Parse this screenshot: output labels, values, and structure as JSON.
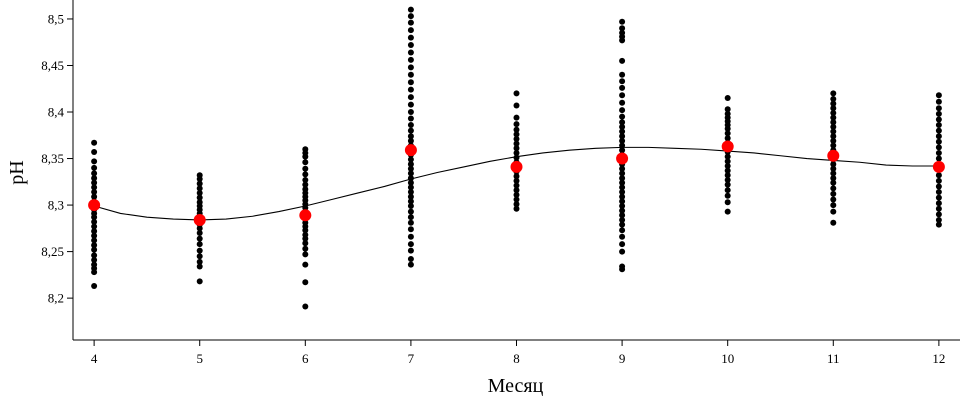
{
  "chart_data": {
    "type": "scatter",
    "title": "",
    "xlabel": "Месяц",
    "ylabel": "pH",
    "xlim": [
      3.8,
      12.2
    ],
    "ylim": [
      8.155,
      8.515
    ],
    "x_ticks": [
      4,
      5,
      6,
      7,
      8,
      9,
      10,
      11,
      12
    ],
    "x_tick_labels": [
      "4",
      "5",
      "6",
      "7",
      "8",
      "9",
      "10",
      "11",
      "12"
    ],
    "y_ticks": [
      8.2,
      8.25,
      8.3,
      8.35,
      8.4,
      8.45,
      8.5
    ],
    "y_tick_labels": [
      "8,2",
      "8,25",
      "8,3",
      "8,35",
      "8,4",
      "8,45",
      "8,5"
    ],
    "grid": false,
    "legend": "none",
    "colors": {
      "observations": "#000000",
      "monthly_mean": "#ff0000",
      "trend": "#000000"
    },
    "observations": [
      {
        "x": 4,
        "y": [
          8.213,
          8.228,
          8.232,
          8.236,
          8.241,
          8.246,
          8.252,
          8.257,
          8.262,
          8.267,
          8.272,
          8.277,
          8.282,
          8.287,
          8.291,
          8.295,
          8.298,
          8.304,
          8.309,
          8.314,
          8.319,
          8.324,
          8.329,
          8.334,
          8.34,
          8.347,
          8.357,
          8.367
        ]
      },
      {
        "x": 5,
        "y": [
          8.218,
          8.234,
          8.239,
          8.245,
          8.251,
          8.258,
          8.264,
          8.27,
          8.275,
          8.279,
          8.283,
          8.287,
          8.291,
          8.295,
          8.299,
          8.303,
          8.308,
          8.313,
          8.318,
          8.323,
          8.328,
          8.332
        ]
      },
      {
        "x": 6,
        "y": [
          8.191,
          8.217,
          8.236,
          8.247,
          8.253,
          8.259,
          8.264,
          8.268,
          8.273,
          8.277,
          8.281,
          8.285,
          8.289,
          8.293,
          8.297,
          8.301,
          8.305,
          8.309,
          8.313,
          8.317,
          8.322,
          8.327,
          8.333,
          8.339,
          8.346,
          8.352,
          8.356,
          8.36
        ]
      },
      {
        "x": 7,
        "y": [
          8.236,
          8.242,
          8.251,
          8.258,
          8.266,
          8.274,
          8.281,
          8.287,
          8.293,
          8.299,
          8.304,
          8.309,
          8.314,
          8.319,
          8.324,
          8.329,
          8.334,
          8.339,
          8.344,
          8.349,
          8.354,
          8.359,
          8.364,
          8.369,
          8.374,
          8.38,
          8.386,
          8.393,
          8.4,
          8.408,
          8.416,
          8.424,
          8.432,
          8.44,
          8.448,
          8.456,
          8.464,
          8.472,
          8.48,
          8.488,
          8.496,
          8.503,
          8.51
        ]
      },
      {
        "x": 8,
        "y": [
          8.296,
          8.301,
          8.306,
          8.311,
          8.316,
          8.321,
          8.326,
          8.331,
          8.336,
          8.341,
          8.346,
          8.351,
          8.356,
          8.361,
          8.366,
          8.371,
          8.376,
          8.381,
          8.387,
          8.394,
          8.407,
          8.42
        ]
      },
      {
        "x": 9,
        "y": [
          8.231,
          8.234,
          8.25,
          8.258,
          8.266,
          8.273,
          8.279,
          8.284,
          8.289,
          8.294,
          8.299,
          8.304,
          8.309,
          8.314,
          8.319,
          8.324,
          8.329,
          8.334,
          8.339,
          8.344,
          8.349,
          8.354,
          8.359,
          8.364,
          8.369,
          8.374,
          8.379,
          8.384,
          8.389,
          8.395,
          8.402,
          8.41,
          8.418,
          8.426,
          8.433,
          8.44,
          8.455,
          8.477,
          8.481,
          8.485,
          8.49,
          8.497
        ]
      },
      {
        "x": 10,
        "y": [
          8.293,
          8.303,
          8.31,
          8.316,
          8.322,
          8.327,
          8.332,
          8.337,
          8.342,
          8.347,
          8.352,
          8.357,
          8.362,
          8.367,
          8.372,
          8.377,
          8.382,
          8.386,
          8.39,
          8.394,
          8.398,
          8.403,
          8.415
        ]
      },
      {
        "x": 11,
        "y": [
          8.281,
          8.293,
          8.3,
          8.306,
          8.312,
          8.318,
          8.324,
          8.329,
          8.334,
          8.339,
          8.344,
          8.349,
          8.354,
          8.359,
          8.364,
          8.369,
          8.374,
          8.379,
          8.384,
          8.389,
          8.394,
          8.399,
          8.404,
          8.409,
          8.414,
          8.42
        ]
      },
      {
        "x": 12,
        "y": [
          8.279,
          8.284,
          8.29,
          8.296,
          8.302,
          8.308,
          8.314,
          8.32,
          8.326,
          8.332,
          8.338,
          8.344,
          8.35,
          8.356,
          8.362,
          8.368,
          8.374,
          8.38,
          8.386,
          8.392,
          8.398,
          8.404,
          8.411,
          8.418
        ]
      }
    ],
    "monthly_means": {
      "x": [
        4,
        5,
        6,
        7,
        8,
        9,
        10,
        11,
        12
      ],
      "y": [
        8.3,
        8.284,
        8.289,
        8.359,
        8.341,
        8.35,
        8.363,
        8.353,
        8.341
      ]
    },
    "trend_curve": {
      "x": [
        4,
        4.25,
        4.5,
        4.75,
        5,
        5.25,
        5.5,
        5.75,
        6,
        6.25,
        6.5,
        6.75,
        7,
        7.25,
        7.5,
        7.75,
        8,
        8.25,
        8.5,
        8.75,
        9,
        9.25,
        9.5,
        9.75,
        10,
        10.25,
        10.5,
        10.75,
        11,
        11.25,
        11.5,
        11.75,
        12
      ],
      "y": [
        8.299,
        8.291,
        8.287,
        8.285,
        8.284,
        8.285,
        8.288,
        8.293,
        8.299,
        8.306,
        8.313,
        8.32,
        8.328,
        8.335,
        8.341,
        8.347,
        8.352,
        8.356,
        8.359,
        8.361,
        8.362,
        8.362,
        8.361,
        8.36,
        8.358,
        8.356,
        8.353,
        8.35,
        8.348,
        8.346,
        8.343,
        8.342,
        8.342
      ]
    }
  }
}
